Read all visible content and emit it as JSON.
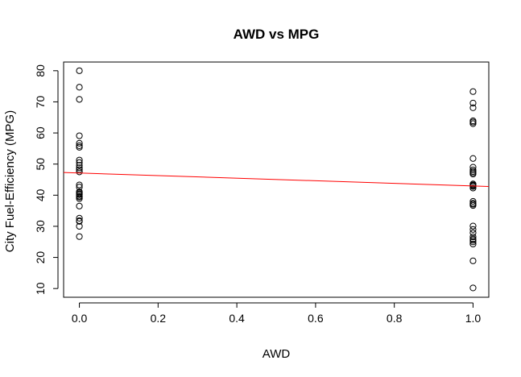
{
  "chart_data": {
    "type": "scatter",
    "title": "AWD vs MPG",
    "xlabel": "AWD",
    "ylabel": "City Fuel-Efficiency (MPG)",
    "xlim": [
      -0.04,
      1.04
    ],
    "ylim": [
      7.2,
      82.8
    ],
    "x_ticks": [
      0.0,
      0.2,
      0.4,
      0.6,
      0.8,
      1.0
    ],
    "x_tick_labels": [
      "0.0",
      "0.2",
      "0.4",
      "0.6",
      "0.8",
      "1.0"
    ],
    "y_ticks": [
      10,
      20,
      30,
      40,
      50,
      60,
      70,
      80
    ],
    "y_tick_labels": [
      "10",
      "20",
      "30",
      "40",
      "50",
      "60",
      "70",
      "80"
    ],
    "grid": false,
    "legend": "none",
    "series": [
      {
        "marker": "open-circle",
        "color": "#000000",
        "x": [
          0,
          0,
          0,
          0,
          0,
          0,
          0,
          0,
          0,
          0,
          0,
          0,
          0,
          0,
          0,
          0,
          0,
          0,
          0,
          0,
          0,
          0,
          0,
          0,
          0,
          0,
          0,
          0,
          1,
          1,
          1,
          1,
          1,
          1,
          1,
          1,
          1,
          1,
          1,
          1,
          1,
          1,
          1,
          1,
          1,
          1,
          1,
          1,
          1,
          1,
          1,
          1,
          1,
          1,
          1,
          1,
          1,
          1,
          1
        ],
        "y": [
          80.0,
          74.7,
          70.8,
          59.1,
          56.7,
          55.9,
          55.4,
          51.3,
          50.5,
          49.6,
          48.8,
          48.2,
          47.5,
          43.3,
          42.6,
          41.1,
          40.4,
          40.2,
          39.7,
          39.4,
          38.9,
          36.5,
          32.6,
          31.8,
          31.6,
          30.0,
          26.7,
          40.8,
          73.3,
          69.6,
          68.1,
          63.9,
          63.5,
          63.0,
          51.8,
          49.0,
          48.1,
          47.6,
          46.8,
          43.6,
          43.1,
          42.8,
          42.3,
          38.0,
          37.1,
          36.7,
          30.1,
          29.0,
          27.9,
          26.6,
          25.5,
          25.0,
          24.3,
          18.9,
          10.2,
          47.2,
          25.9,
          43.3,
          37.4
        ]
      }
    ],
    "fit_line": {
      "color": "#ff0000",
      "x": [
        -0.04,
        1.04
      ],
      "y": [
        47.3,
        42.8
      ]
    }
  }
}
